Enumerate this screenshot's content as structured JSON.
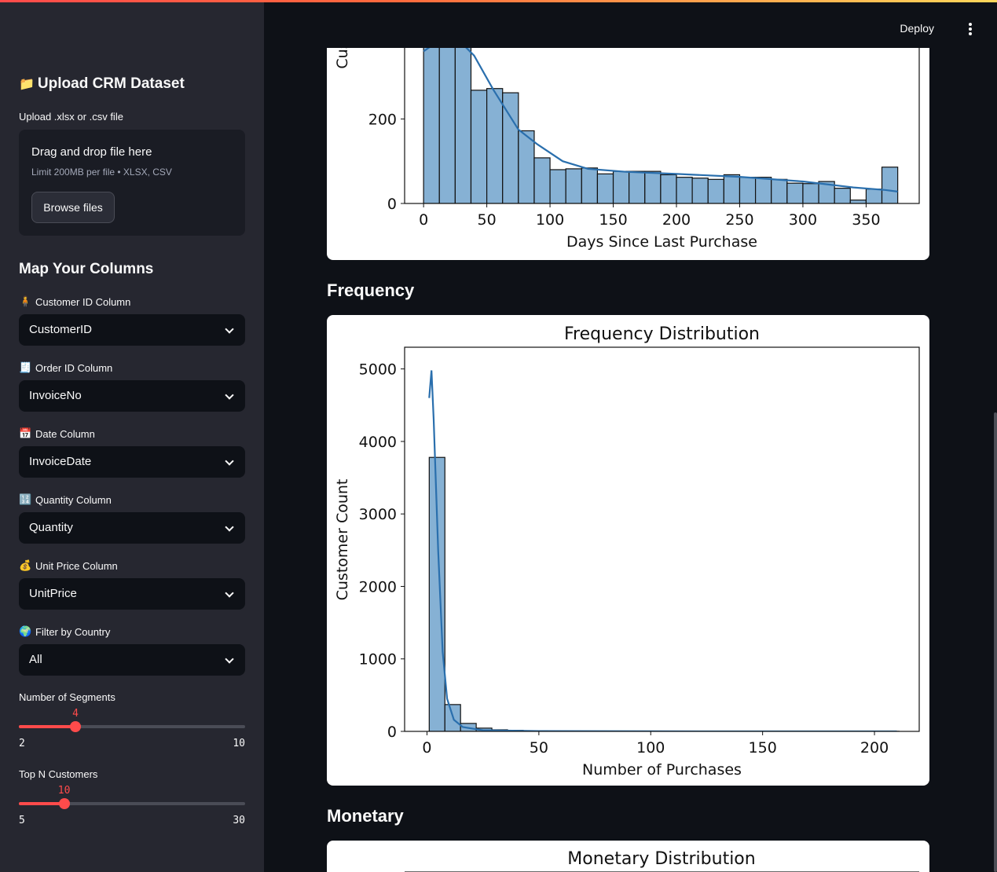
{
  "sidebar": {
    "upload_title": "Upload CRM Dataset",
    "upload_icon": "folder-icon",
    "upload_label": "Upload .xlsx or .csv file",
    "dropzone_main": "Drag and drop file here",
    "dropzone_sub": "Limit 200MB per file • XLSX, CSV",
    "browse_label": "Browse files",
    "map_heading": "Map Your Columns",
    "fields": [
      {
        "label": "Customer ID Column",
        "icon": "person-icon",
        "value": "CustomerID"
      },
      {
        "label": "Order ID Column",
        "icon": "receipt-icon",
        "value": "InvoiceNo"
      },
      {
        "label": "Date Column",
        "icon": "calendar-icon",
        "value": "InvoiceDate"
      },
      {
        "label": "Quantity Column",
        "icon": "numbers-icon",
        "value": "Quantity"
      },
      {
        "label": "Unit Price Column",
        "icon": "money-bag-icon",
        "value": "UnitPrice"
      },
      {
        "label": "Filter by Country",
        "icon": "globe-icon",
        "value": "All"
      }
    ],
    "sliders": [
      {
        "label": "Number of Segments",
        "value": 4,
        "min": 2,
        "max": 10
      },
      {
        "label": "Top N Customers",
        "value": 10,
        "min": 5,
        "max": 30
      }
    ]
  },
  "header": {
    "deploy_label": "Deploy"
  },
  "sections": {
    "frequency": "Frequency",
    "monetary": "Monetary"
  },
  "colors": {
    "accent": "#ff4b4b",
    "bar": "#86b1d4",
    "kde": "#2a6fad",
    "sidebar_bg": "#262730",
    "main_bg": "#0e1117"
  },
  "chart_data": [
    {
      "type": "bar",
      "title": "",
      "xlabel": "Days Since Last Purchase",
      "ylabel": "Cus",
      "x_ticks": [
        0,
        50,
        100,
        150,
        200,
        250,
        300,
        350
      ],
      "y_ticks": [
        0,
        200
      ],
      "xlim": [
        -15,
        392
      ],
      "ylim": [
        0,
        370
      ],
      "bin_width": 12.5,
      "bin_start": 0,
      "values": [
        380,
        380,
        380,
        268,
        272,
        262,
        172,
        108,
        80,
        82,
        84,
        70,
        76,
        76,
        76,
        68,
        62,
        60,
        57,
        68,
        62,
        62,
        57,
        48,
        47,
        52,
        36,
        8,
        34,
        86
      ],
      "kde": [
        [
          0,
          360
        ],
        [
          12,
          385
        ],
        [
          25,
          395
        ],
        [
          40,
          350
        ],
        [
          55,
          270
        ],
        [
          75,
          175
        ],
        [
          90,
          140
        ],
        [
          110,
          100
        ],
        [
          130,
          82
        ],
        [
          160,
          75
        ],
        [
          200,
          70
        ],
        [
          250,
          63
        ],
        [
          300,
          52
        ],
        [
          340,
          38
        ],
        [
          365,
          32
        ],
        [
          375,
          28
        ]
      ]
    },
    {
      "type": "bar",
      "title": "Frequency Distribution",
      "xlabel": "Number of Purchases",
      "ylabel": "Customer Count",
      "x_ticks": [
        0,
        50,
        100,
        150,
        200
      ],
      "y_ticks": [
        0,
        1000,
        2000,
        3000,
        4000,
        5000
      ],
      "xlim": [
        -10,
        220
      ],
      "ylim": [
        0,
        5300
      ],
      "bin_width": 7,
      "bin_start": 1,
      "values": [
        3780,
        370,
        110,
        45,
        22,
        14,
        8,
        5,
        4,
        3,
        2,
        2,
        1,
        1,
        1,
        1,
        1,
        1,
        1,
        1,
        1,
        1,
        1,
        1,
        1,
        1,
        1,
        1,
        1,
        1
      ],
      "kde": [
        [
          1,
          4600
        ],
        [
          2,
          4980
        ],
        [
          3,
          4300
        ],
        [
          5,
          2500
        ],
        [
          7,
          1100
        ],
        [
          9,
          450
        ],
        [
          12,
          160
        ],
        [
          16,
          60
        ],
        [
          25,
          15
        ],
        [
          50,
          4
        ],
        [
          100,
          1
        ],
        [
          210,
          0
        ]
      ]
    },
    {
      "type": "bar",
      "title": "Monetary Distribution"
    }
  ]
}
